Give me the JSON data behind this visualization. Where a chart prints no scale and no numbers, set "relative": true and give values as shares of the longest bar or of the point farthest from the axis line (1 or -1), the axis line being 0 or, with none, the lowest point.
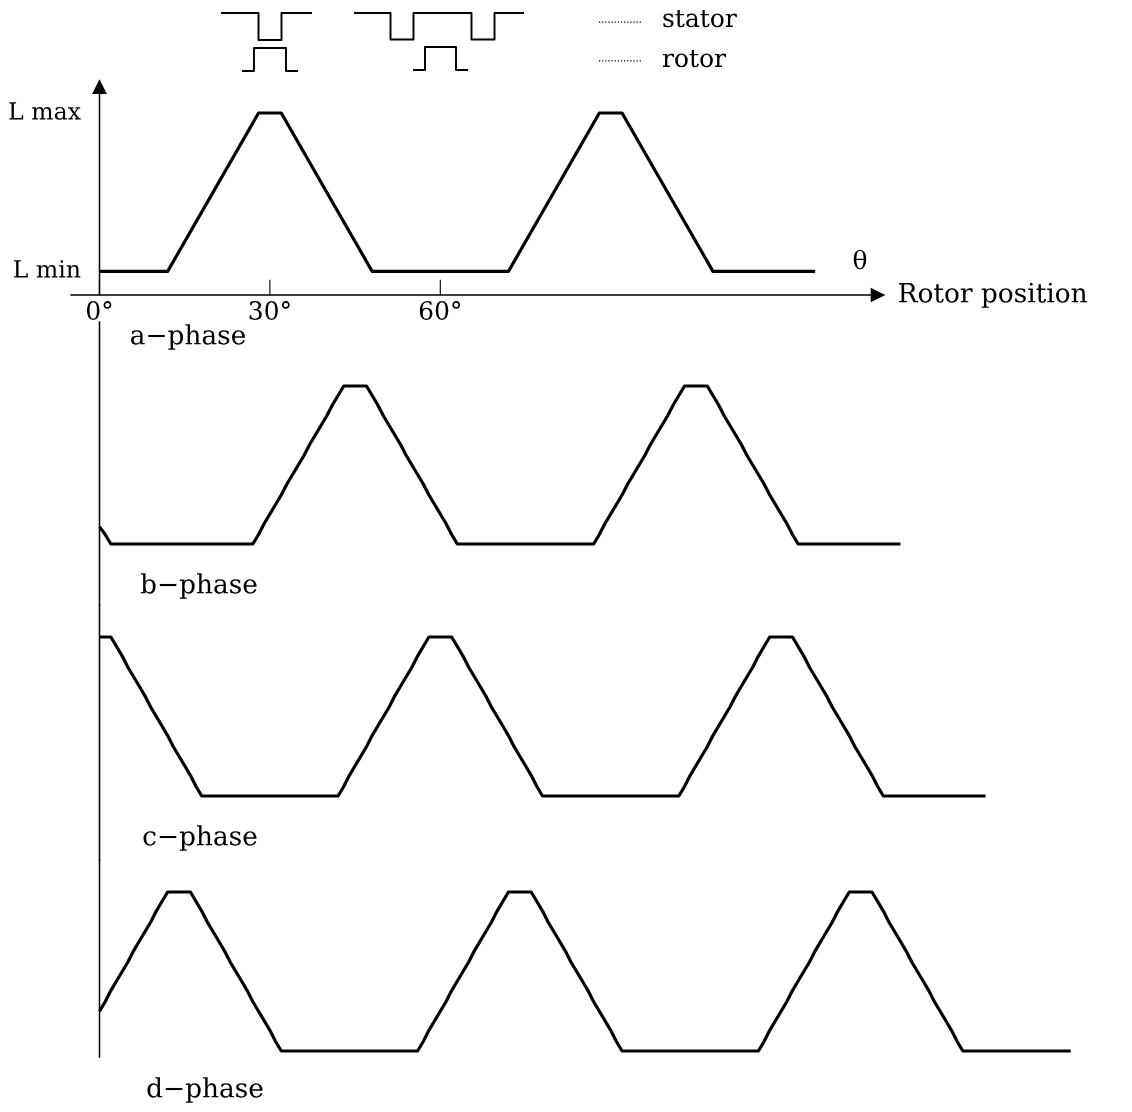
{
  "chart_data": [
    {
      "type": "line",
      "title": "a−phase",
      "xlabel": "Rotor position",
      "relative": true,
      "annotations": [
        "θ",
        "stator",
        "rotor",
        "L max",
        "L min"
      ],
      "x": [
        0,
        12,
        28,
        32,
        48,
        72,
        88,
        92,
        108,
        126
      ],
      "series": [
        {
          "color": "#000000",
          "values": [
            0.13,
            0.13,
            1,
            1,
            0.13,
            0.13,
            1,
            1,
            0.13,
            0.13
          ]
        }
      ],
      "xlim": [
        -5,
        137
      ],
      "xticks": [
        {
          "value": 0,
          "label": "0°"
        },
        {
          "value": 30,
          "label": "30°"
        },
        {
          "value": 60,
          "label": "60°"
        }
      ]
    },
    {
      "type": "line",
      "title": "b−phase",
      "relative": true,
      "tick_labels": false,
      "categories": [
        null,
        null,
        null,
        null,
        null,
        null,
        null,
        null,
        null,
        null,
        null,
        null,
        null,
        null,
        null,
        null,
        null,
        null,
        null,
        null,
        null,
        null,
        null,
        null,
        null,
        null,
        null,
        null,
        null,
        null,
        null,
        null,
        null,
        null,
        null,
        null,
        null,
        null,
        null,
        null,
        null,
        null,
        null,
        null,
        null,
        null,
        null,
        null,
        null,
        null,
        null,
        null,
        null,
        null,
        null,
        null,
        null,
        null,
        null,
        null,
        null,
        null,
        null,
        null,
        null,
        null,
        null,
        null,
        null,
        null,
        null,
        null,
        null,
        null,
        null,
        null,
        null,
        null,
        null,
        null,
        null,
        null,
        null,
        null,
        null,
        null,
        null,
        null,
        null,
        null,
        null,
        null,
        null,
        null,
        null,
        null,
        null,
        null,
        null,
        null,
        null,
        null,
        null,
        null,
        null,
        null,
        null,
        null,
        null,
        null,
        null,
        null,
        null,
        null,
        null,
        null,
        null,
        null,
        null,
        null,
        null,
        null,
        null,
        null,
        null,
        null,
        null,
        null,
        null,
        null,
        null,
        null,
        null,
        null,
        null,
        null,
        null,
        null,
        null,
        null,
        null,
        null
      ],
      "series": [
        {
          "color": "#000000",
          "values": [
            0.11,
            0.06,
            0,
            0,
            0,
            0,
            0,
            0,
            0,
            0,
            0,
            0,
            0,
            0,
            0,
            0,
            0,
            0,
            0,
            0,
            0,
            0,
            0,
            0,
            0,
            0,
            0,
            0,
            0.06,
            0.13,
            0.19,
            0.25,
            0.31,
            0.38,
            0.44,
            0.5,
            0.56,
            0.63,
            0.69,
            0.75,
            0.81,
            0.88,
            0.94,
            1,
            1,
            1,
            1,
            1,
            0.94,
            0.88,
            0.81,
            0.75,
            0.69,
            0.63,
            0.56,
            0.5,
            0.44,
            0.38,
            0.31,
            0.25,
            0.19,
            0.13,
            0.06,
            0,
            0,
            0,
            0,
            0,
            0,
            0,
            0,
            0,
            0,
            0,
            0,
            0,
            0,
            0,
            0,
            0,
            0,
            0,
            0,
            0,
            0,
            0,
            0,
            0,
            0.06,
            0.13,
            0.19,
            0.25,
            0.31,
            0.38,
            0.44,
            0.5,
            0.56,
            0.63,
            0.69,
            0.75,
            0.81,
            0.88,
            0.94,
            1,
            1,
            1,
            1,
            1,
            0.94,
            0.88,
            0.81,
            0.75,
            0.69,
            0.63,
            0.56,
            0.5,
            0.44,
            0.38,
            0.31,
            0.25,
            0.19,
            0.13,
            0.06,
            0,
            0,
            0,
            0,
            0,
            0,
            0,
            0,
            0,
            0,
            0,
            0,
            0,
            0,
            0,
            0,
            0,
            0,
            0
          ]
        }
      ]
    },
    {
      "type": "line",
      "title": "c−phase",
      "relative": true,
      "tick_labels": false,
      "categories": [
        null,
        null,
        null,
        null,
        null,
        null,
        null,
        null,
        null,
        null,
        null,
        null,
        null,
        null,
        null,
        null,
        null,
        null,
        null,
        null,
        null,
        null,
        null,
        null,
        null,
        null,
        null,
        null,
        null,
        null,
        null,
        null,
        null,
        null,
        null,
        null,
        null,
        null,
        null,
        null,
        null,
        null,
        null,
        null,
        null,
        null,
        null,
        null,
        null,
        null,
        null,
        null,
        null,
        null,
        null,
        null,
        null,
        null,
        null,
        null,
        null,
        null,
        null,
        null,
        null,
        null,
        null,
        null,
        null,
        null,
        null,
        null,
        null,
        null,
        null,
        null,
        null,
        null,
        null,
        null,
        null,
        null,
        null,
        null,
        null,
        null,
        null,
        null,
        null,
        null,
        null,
        null,
        null,
        null,
        null,
        null,
        null,
        null,
        null,
        null,
        null,
        null,
        null,
        null,
        null,
        null,
        null,
        null,
        null,
        null,
        null,
        null,
        null,
        null,
        null,
        null,
        null,
        null,
        null,
        null,
        null,
        null,
        null,
        null,
        null,
        null,
        null,
        null,
        null,
        null,
        null,
        null,
        null,
        null,
        null,
        null,
        null,
        null,
        null,
        null,
        null,
        null,
        null,
        null,
        null,
        null,
        null,
        null,
        null,
        null,
        null,
        null,
        null,
        null,
        null,
        null,
        null
      ],
      "series": [
        {
          "color": "#000000",
          "values": [
            1,
            1,
            1,
            0.94,
            0.88,
            0.81,
            0.75,
            0.69,
            0.63,
            0.56,
            0.5,
            0.44,
            0.38,
            0.31,
            0.25,
            0.19,
            0.13,
            0.06,
            0,
            0,
            0,
            0,
            0,
            0,
            0,
            0,
            0,
            0,
            0,
            0,
            0,
            0,
            0,
            0,
            0,
            0,
            0,
            0,
            0,
            0,
            0,
            0,
            0,
            0.06,
            0.13,
            0.19,
            0.25,
            0.31,
            0.38,
            0.44,
            0.5,
            0.56,
            0.63,
            0.69,
            0.75,
            0.81,
            0.88,
            0.94,
            1,
            1,
            1,
            1,
            1,
            0.94,
            0.88,
            0.81,
            0.75,
            0.69,
            0.63,
            0.56,
            0.5,
            0.44,
            0.38,
            0.31,
            0.25,
            0.19,
            0.13,
            0.06,
            0,
            0,
            0,
            0,
            0,
            0,
            0,
            0,
            0,
            0,
            0,
            0,
            0,
            0,
            0,
            0,
            0,
            0,
            0,
            0,
            0,
            0,
            0,
            0,
            0,
            0.06,
            0.13,
            0.19,
            0.25,
            0.31,
            0.38,
            0.44,
            0.5,
            0.56,
            0.63,
            0.69,
            0.75,
            0.81,
            0.88,
            0.94,
            1,
            1,
            1,
            1,
            1,
            0.94,
            0.88,
            0.81,
            0.75,
            0.69,
            0.63,
            0.56,
            0.5,
            0.44,
            0.38,
            0.31,
            0.25,
            0.19,
            0.13,
            0.06,
            0,
            0,
            0,
            0,
            0,
            0,
            0,
            0,
            0,
            0,
            0,
            0,
            0,
            0,
            0,
            0,
            0,
            0,
            0
          ]
        }
      ]
    },
    {
      "type": "line",
      "title": "d−phase",
      "relative": true,
      "tick_labels": false,
      "categories": [
        null,
        null,
        null,
        null,
        null,
        null,
        null,
        null,
        null,
        null,
        null,
        null,
        null,
        null,
        null,
        null,
        null,
        null,
        null,
        null,
        null,
        null,
        null,
        null,
        null,
        null,
        null,
        null,
        null,
        null,
        null,
        null,
        null,
        null,
        null,
        null,
        null,
        null,
        null,
        null,
        null,
        null,
        null,
        null,
        null,
        null,
        null,
        null,
        null,
        null,
        null,
        null,
        null,
        null,
        null,
        null,
        null,
        null,
        null,
        null,
        null,
        null,
        null,
        null,
        null,
        null,
        null,
        null,
        null,
        null,
        null,
        null,
        null,
        null,
        null,
        null,
        null,
        null,
        null,
        null,
        null,
        null,
        null,
        null,
        null,
        null,
        null,
        null,
        null,
        null,
        null,
        null,
        null,
        null,
        null,
        null,
        null,
        null,
        null,
        null,
        null,
        null,
        null,
        null,
        null,
        null,
        null,
        null,
        null,
        null,
        null,
        null,
        null,
        null,
        null,
        null,
        null,
        null,
        null,
        null,
        null,
        null,
        null,
        null,
        null,
        null,
        null,
        null,
        null,
        null,
        null,
        null,
        null,
        null,
        null,
        null,
        null,
        null,
        null,
        null,
        null,
        null,
        null,
        null,
        null,
        null,
        null,
        null,
        null,
        null,
        null,
        null,
        null,
        null,
        null,
        null,
        null,
        null,
        null,
        null,
        null,
        null,
        null,
        null,
        null,
        null,
        null,
        null,
        null,
        null,
        null,
        null
      ],
      "series": [
        {
          "color": "#000000",
          "values": [
            0.25,
            0.31,
            0.38,
            0.44,
            0.5,
            0.56,
            0.63,
            0.69,
            0.75,
            0.81,
            0.88,
            0.94,
            1,
            1,
            1,
            1,
            1,
            0.94,
            0.88,
            0.81,
            0.75,
            0.69,
            0.63,
            0.56,
            0.5,
            0.44,
            0.38,
            0.31,
            0.25,
            0.19,
            0.13,
            0.06,
            0,
            0,
            0,
            0,
            0,
            0,
            0,
            0,
            0,
            0,
            0,
            0,
            0,
            0,
            0,
            0,
            0,
            0,
            0,
            0,
            0,
            0,
            0,
            0,
            0,
            0.06,
            0.13,
            0.19,
            0.25,
            0.31,
            0.38,
            0.44,
            0.5,
            0.56,
            0.63,
            0.69,
            0.75,
            0.81,
            0.88,
            0.94,
            1,
            1,
            1,
            1,
            1,
            0.94,
            0.88,
            0.81,
            0.75,
            0.69,
            0.63,
            0.56,
            0.5,
            0.44,
            0.38,
            0.31,
            0.25,
            0.19,
            0.13,
            0.06,
            0,
            0,
            0,
            0,
            0,
            0,
            0,
            0,
            0,
            0,
            0,
            0,
            0,
            0,
            0,
            0,
            0,
            0,
            0,
            0,
            0,
            0,
            0,
            0,
            0,
            0.06,
            0.13,
            0.19,
            0.25,
            0.31,
            0.38,
            0.44,
            0.5,
            0.56,
            0.63,
            0.69,
            0.75,
            0.81,
            0.88,
            0.94,
            1,
            1,
            1,
            1,
            1,
            0.94,
            0.88,
            0.81,
            0.75,
            0.69,
            0.63,
            0.56,
            0.5,
            0.44,
            0.38,
            0.31,
            0.25,
            0.19,
            0.13,
            0.06,
            0,
            0,
            0,
            0,
            0,
            0,
            0,
            0,
            0,
            0,
            0,
            0,
            0,
            0,
            0,
            0,
            0,
            0,
            0,
            0
          ]
        }
      ]
    }
  ]
}
